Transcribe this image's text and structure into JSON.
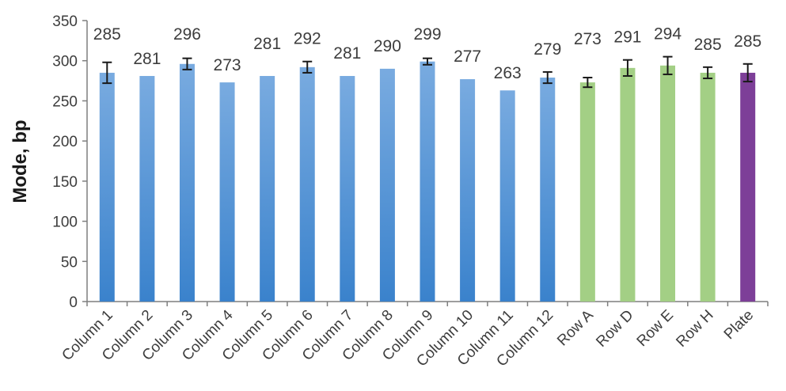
{
  "chart_data": {
    "type": "bar",
    "title": "",
    "xlabel": "",
    "ylabel": "Mode, bp",
    "ylim": [
      0,
      350
    ],
    "yticks": [
      0,
      50,
      100,
      150,
      200,
      250,
      300,
      350
    ],
    "grid": false,
    "legend": "none",
    "categories": [
      "Column 1",
      "Column 2",
      "Column 3",
      "Column 4",
      "Column 5",
      "Column 6",
      "Column 7",
      "Column 8",
      "Column 9",
      "Column 10",
      "Column 11",
      "Column 12",
      "Row A",
      "Row D",
      "Row E",
      "Row H",
      "Plate"
    ],
    "values": [
      285,
      281,
      296,
      273,
      281,
      292,
      281,
      290,
      299,
      277,
      263,
      279,
      273,
      291,
      294,
      285,
      285
    ],
    "value_labels": [
      "285",
      "281",
      "296",
      "273",
      "281",
      "292",
      "281",
      "290",
      "299",
      "277",
      "263",
      "279",
      "273",
      "291",
      "294",
      "285",
      "285"
    ],
    "error": [
      13,
      0,
      7,
      0,
      0,
      7,
      0,
      0,
      4,
      0,
      0,
      7,
      6,
      10,
      11,
      7,
      11
    ],
    "groups": [
      "column",
      "column",
      "column",
      "column",
      "column",
      "column",
      "column",
      "column",
      "column",
      "column",
      "column",
      "column",
      "row",
      "row",
      "row",
      "row",
      "plate"
    ],
    "colors": {
      "column_top": "#79abe0",
      "column_bottom": "#3a82cc",
      "row": "#a3cf85",
      "plate": "#7d3f98"
    }
  }
}
